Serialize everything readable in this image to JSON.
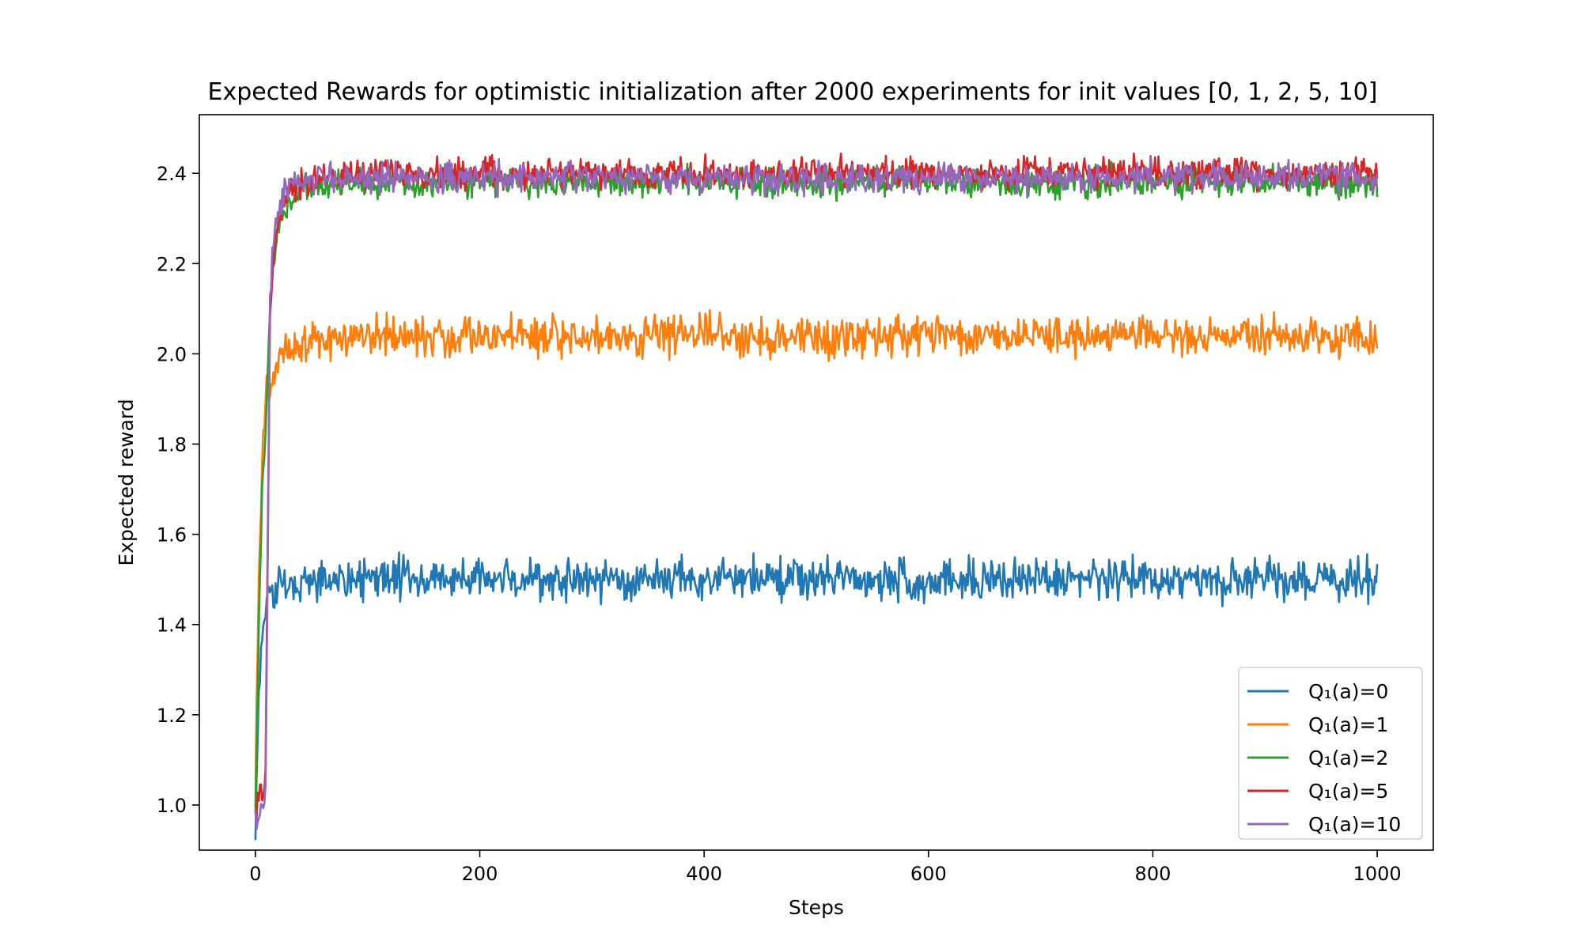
{
  "chart_data": {
    "type": "line",
    "title": "Expected Rewards for optimistic initialization after 2000 experiments for init values [0, 1, 2, 5, 10]",
    "xlabel": "Steps",
    "ylabel": "Expected reward",
    "xlim": [
      -50,
      1050
    ],
    "ylim": [
      0.9,
      2.53
    ],
    "xticks": [
      0,
      200,
      400,
      600,
      800,
      1000
    ],
    "xtick_labels": [
      "0",
      "200",
      "400",
      "600",
      "800",
      "1000"
    ],
    "yticks": [
      1.0,
      1.2,
      1.4,
      1.6,
      1.8,
      2.0,
      2.2,
      2.4
    ],
    "ytick_labels": [
      "1.0",
      "1.2",
      "1.4",
      "1.6",
      "1.8",
      "2.0",
      "2.2",
      "2.4"
    ],
    "grid": false,
    "legend_position": "lower-right",
    "steps": 1000,
    "series": [
      {
        "name": "Q₁(a)=0",
        "color": "#1f77b4",
        "x": [
          0,
          2,
          4,
          6,
          8,
          10,
          15,
          20,
          30,
          50,
          100,
          200,
          400,
          600,
          800,
          1000
        ],
        "values": [
          0.95,
          1.15,
          1.3,
          1.38,
          1.4,
          1.44,
          1.47,
          1.48,
          1.49,
          1.5,
          1.5,
          1.5,
          1.5,
          1.5,
          1.5,
          1.5
        ],
        "noise": 0.035
      },
      {
        "name": "Q₁(a)=1",
        "color": "#ff7f0e",
        "x": [
          0,
          2,
          4,
          6,
          8,
          10,
          15,
          20,
          30,
          50,
          100,
          200,
          400,
          600,
          800,
          1000
        ],
        "values": [
          1.0,
          1.35,
          1.6,
          1.75,
          1.85,
          1.93,
          1.95,
          1.98,
          2.01,
          2.03,
          2.04,
          2.04,
          2.04,
          2.04,
          2.04,
          2.04
        ],
        "noise": 0.035
      },
      {
        "name": "Q₁(a)=2",
        "color": "#2ca02c",
        "x": [
          0,
          2,
          4,
          6,
          8,
          10,
          12,
          15,
          20,
          25,
          30,
          40,
          60,
          100,
          200,
          400,
          600,
          800,
          1000
        ],
        "values": [
          1.0,
          1.25,
          1.5,
          1.68,
          1.8,
          1.9,
          2.05,
          2.18,
          2.27,
          2.31,
          2.34,
          2.36,
          2.37,
          2.38,
          2.38,
          2.38,
          2.38,
          2.38,
          2.38
        ],
        "noise": 0.025
      },
      {
        "name": "Q₁(a)=5",
        "color": "#d62728",
        "x": [
          0,
          3,
          5,
          7,
          9,
          11,
          13,
          16,
          20,
          25,
          30,
          40,
          60,
          100,
          200,
          400,
          600,
          800,
          1000
        ],
        "values": [
          0.98,
          1.02,
          1.05,
          1.0,
          1.1,
          1.6,
          2.05,
          2.22,
          2.3,
          2.34,
          2.36,
          2.38,
          2.39,
          2.4,
          2.4,
          2.4,
          2.4,
          2.4,
          2.4
        ],
        "noise": 0.025
      },
      {
        "name": "Q₁(a)=10",
        "color": "#9467bd",
        "x": [
          0,
          3,
          5,
          7,
          9,
          11,
          13,
          16,
          20,
          25,
          30,
          40,
          60,
          100,
          200,
          400,
          600,
          800,
          1000
        ],
        "values": [
          0.97,
          0.98,
          1.0,
          0.99,
          1.02,
          1.55,
          2.1,
          2.25,
          2.32,
          2.35,
          2.37,
          2.38,
          2.39,
          2.39,
          2.39,
          2.39,
          2.39,
          2.39,
          2.39
        ],
        "noise": 0.025
      }
    ]
  }
}
